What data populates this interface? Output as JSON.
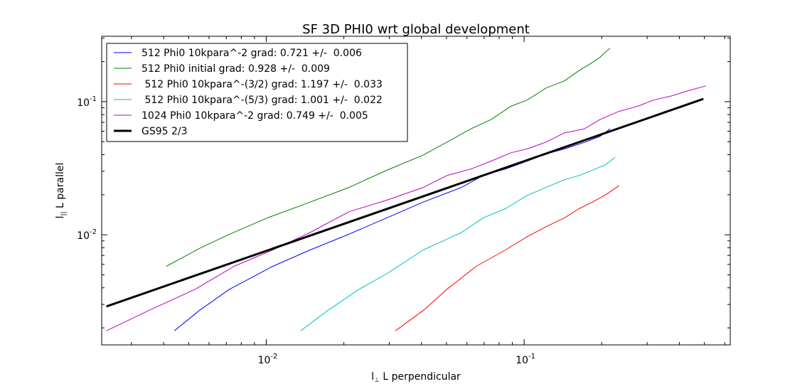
{
  "chart_data": {
    "type": "line",
    "title": "SF 3D PHI0 wrt global development",
    "xlabel_main": "l",
    "xlabel_sub": "⊥",
    "xlabel_rest": " L perpendicular",
    "ylabel_main": "l",
    "ylabel_sub": "||",
    "ylabel_rest": " L parallel",
    "x_scale": "log",
    "y_scale": "log",
    "xlim": [
      0.0023,
      0.63
    ],
    "ylim": [
      0.00149,
      0.31
    ],
    "x_ticks": [
      {
        "value": 0.01,
        "base": "10",
        "exp": "-2"
      },
      {
        "value": 0.1,
        "base": "10",
        "exp": "-1"
      }
    ],
    "y_ticks": [
      {
        "value": 0.01,
        "base": "10",
        "exp": "-2"
      },
      {
        "value": 0.1,
        "base": "10",
        "exp": "-1"
      }
    ],
    "grid": false,
    "legend_position": "top-left",
    "series": [
      {
        "name": "512 Phi0 10kpara^-2 grad: 0.721 +/-  0.006",
        "color": "#0000ff",
        "width": 1,
        "x": [
          0.0044,
          0.0055,
          0.0072,
          0.0106,
          0.0148,
          0.0209,
          0.0293,
          0.0406,
          0.0571,
          0.0694,
          0.0846,
          0.1029,
          0.1216,
          0.1432,
          0.1713,
          0.1969,
          0.2155
        ],
        "y": [
          0.0019,
          0.0027,
          0.0039,
          0.0058,
          0.0077,
          0.0101,
          0.0134,
          0.0176,
          0.0227,
          0.0279,
          0.0312,
          0.0358,
          0.0405,
          0.0442,
          0.0495,
          0.0548,
          0.0625
        ]
      },
      {
        "name": "512 Phi0 initial grad: 0.928 +/-  0.009",
        "color": "#008000",
        "width": 1,
        "x": [
          0.0041,
          0.0055,
          0.0072,
          0.0101,
          0.0148,
          0.0209,
          0.0293,
          0.0406,
          0.0502,
          0.0622,
          0.0745,
          0.0892,
          0.1029,
          0.1216,
          0.1432,
          0.1634,
          0.1838,
          0.1969,
          0.2055,
          0.2155
        ],
        "y": [
          0.0058,
          0.0079,
          0.0101,
          0.0134,
          0.0176,
          0.0227,
          0.0305,
          0.0397,
          0.0497,
          0.0625,
          0.0734,
          0.0928,
          0.1029,
          0.1266,
          0.1432,
          0.1713,
          0.1969,
          0.2155,
          0.2335,
          0.2517
        ]
      },
      {
        "name": " 512 Phi0 10kpara^-(3/2) grad: 1.197 +/-  0.033",
        "color": "#ff0000",
        "width": 1,
        "x": [
          0.0317,
          0.0406,
          0.0502,
          0.0652,
          0.0846,
          0.1029,
          0.1216,
          0.1432,
          0.1634,
          0.1838,
          0.2055,
          0.2335
        ],
        "y": [
          0.0019,
          0.0027,
          0.0039,
          0.0058,
          0.0077,
          0.0097,
          0.0115,
          0.0134,
          0.0157,
          0.0176,
          0.0198,
          0.0234
        ]
      },
      {
        "name": " 512 Phi0 10kpara^-(5/3) grad: 1.001 +/-  0.022",
        "color": "#00bfbf",
        "width": 1,
        "x": [
          0.0136,
          0.0173,
          0.0229,
          0.0293,
          0.0406,
          0.0571,
          0.0694,
          0.0846,
          0.1029,
          0.1216,
          0.1432,
          0.1634,
          0.2055,
          0.2252
        ],
        "y": [
          0.0019,
          0.0027,
          0.0039,
          0.0051,
          0.0077,
          0.0104,
          0.0134,
          0.0157,
          0.0198,
          0.0227,
          0.0259,
          0.0279,
          0.0334,
          0.0381
        ]
      },
      {
        "name": "1024 Phi0 10kpara^-2 grad: 0.749 +/-  0.005",
        "color": "#bf00bf",
        "width": 1,
        "x": [
          0.0024,
          0.0035,
          0.0053,
          0.0075,
          0.0106,
          0.0148,
          0.0209,
          0.0293,
          0.0406,
          0.0502,
          0.0622,
          0.0745,
          0.0892,
          0.1029,
          0.1216,
          0.1432,
          0.1713,
          0.1969,
          0.2335,
          0.2771,
          0.3179,
          0.3731,
          0.4368,
          0.5069
        ],
        "y": [
          0.0019,
          0.0027,
          0.0039,
          0.0058,
          0.0077,
          0.0104,
          0.0149,
          0.0182,
          0.0227,
          0.0279,
          0.0312,
          0.0358,
          0.0414,
          0.0442,
          0.0497,
          0.0583,
          0.0625,
          0.0734,
          0.0846,
          0.0928,
          0.1029,
          0.1104,
          0.1216,
          0.1314
        ]
      },
      {
        "name": "GS95 2/3",
        "color": "#000000",
        "width": 3,
        "x": [
          0.0024,
          0.4957
        ],
        "y": [
          0.0029,
          0.1049
        ]
      }
    ]
  }
}
